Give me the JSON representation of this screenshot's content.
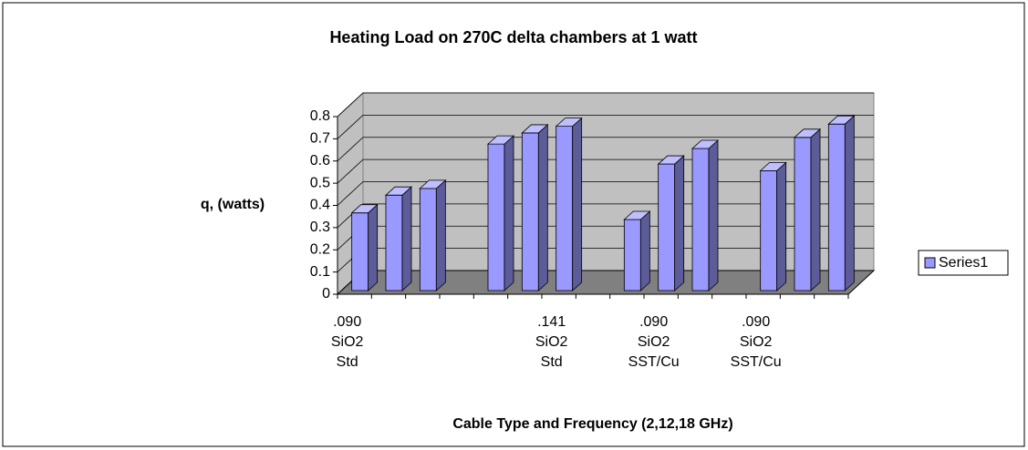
{
  "chart_data": {
    "type": "bar3d",
    "title": "Heating Load on 270C delta chambers at 1 watt",
    "y_label": "q, (watts)",
    "x_label": "Cable Type and Frequency (2,12,18 GHz)",
    "categories": [
      ".090\nSiO2\nStd",
      null,
      null,
      null,
      null,
      null,
      ".141\nSiO2\nStd",
      null,
      null,
      ".090\nSiO2\nSST/Cu",
      null,
      null,
      ".090\nSiO2\nSST/Cu",
      null,
      null
    ],
    "series": [
      {
        "name": "Series1",
        "color": "#9999ff",
        "values": [
          0.35,
          0.43,
          0.46,
          null,
          0.66,
          0.71,
          0.74,
          null,
          0.32,
          0.57,
          0.64,
          null,
          0.54,
          0.69,
          0.75
        ]
      }
    ],
    "ylim": [
      0,
      0.8
    ],
    "yticks": [
      0,
      0.1,
      0.2,
      0.3,
      0.4,
      0.5,
      0.6,
      0.7,
      0.8
    ],
    "grid": true,
    "legend": "right"
  }
}
